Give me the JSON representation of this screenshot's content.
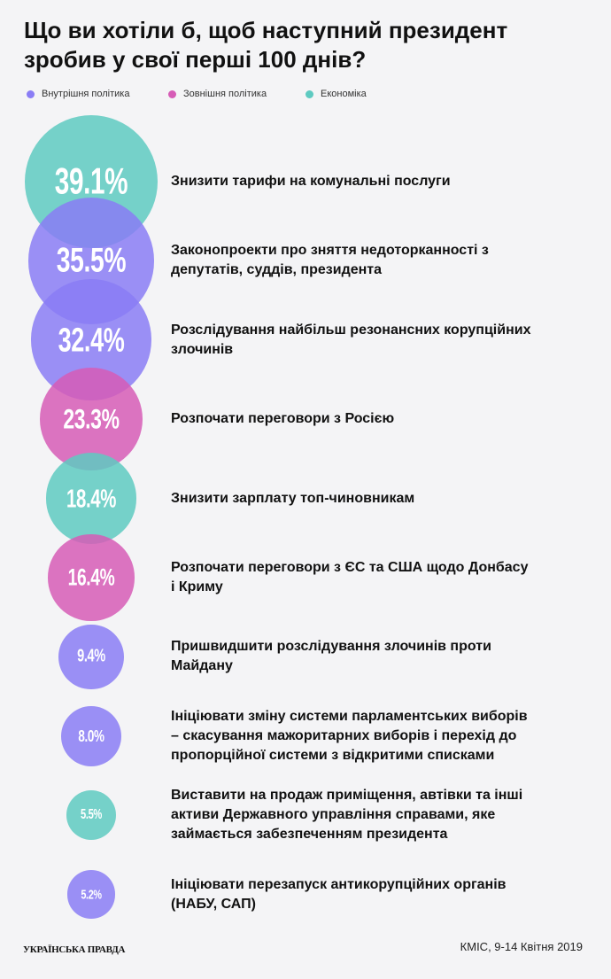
{
  "chart_data": {
    "type": "bubble",
    "title": "Що ви хотіли б, щоб наступний президент зробив у свої перші 100 днів?",
    "legend": [
      {
        "name": "Внутрішня політика",
        "color": "#8a7df5"
      },
      {
        "name": "Зовнішня політика",
        "color": "#d65cb6"
      },
      {
        "name": "Економіка",
        "color": "#5ecac1"
      }
    ],
    "categories": [
      "Знизити тарифи на комунальні послуги",
      "Законопроекти про зняття недоторканності з депутатів, суддів, президента",
      "Розслідування найбільш резонансних корупційних злочинів",
      "Розпочати переговори з Росією",
      "Знизити зарплату топ-чиновникам",
      "Розпочати переговори з ЄС та США щодо Донбасу і Криму",
      "Пришвидшити розслідування злочинів проти Майдану",
      "Ініціювати зміну системи парламентських виборів – скасування мажоритарних виборів і перехід до пропорційної системи з відкритими списками",
      "Виставити на продаж приміщення, автівки та інші активи Державного управління справами, яке займається забезпеченням президента",
      "Ініціювати перезапуск антикорупційних органів (НАБУ, САП)"
    ],
    "values": [
      39.1,
      35.5,
      32.4,
      23.3,
      18.4,
      16.4,
      9.4,
      8.0,
      5.5,
      5.2
    ],
    "value_labels": [
      "39.1%",
      "35.5%",
      "32.4%",
      "23.3%",
      "18.4%",
      "16.4%",
      "9.4%",
      "8.0%",
      "5.5%",
      "5.2%"
    ],
    "colors": [
      "#5ecac1",
      "#8a7df5",
      "#8a7df5",
      "#d65cb6",
      "#5ecac1",
      "#d65cb6",
      "#8a7df5",
      "#8a7df5",
      "#5ecac1",
      "#8a7df5"
    ],
    "source": "КМІС, 9-14 Квітня 2019",
    "publisher": "УКРАЇНСЬКА ПРАВДА"
  }
}
